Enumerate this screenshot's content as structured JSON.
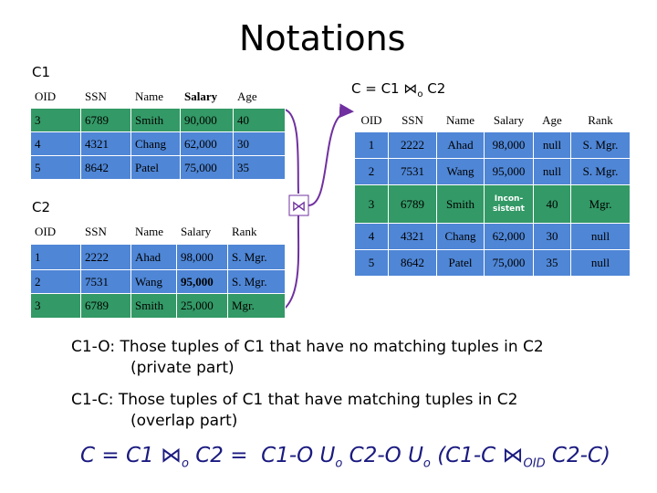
{
  "title": "Notations",
  "c1": {
    "label": "C1",
    "header": [
      "OID",
      "SSN",
      "Name",
      "Salary",
      "Age"
    ],
    "rows": [
      {
        "color": "#339966",
        "cells": [
          "3",
          "6789",
          "Smith",
          "90,000",
          "40"
        ]
      },
      {
        "color": "#4f86d6",
        "cells": [
          "4",
          "4321",
          "Chang",
          "62,000",
          "30"
        ]
      },
      {
        "color": "#4f86d6",
        "cells": [
          "5",
          "8642",
          "Patel",
          "75,000",
          "35"
        ]
      }
    ]
  },
  "c2": {
    "label": "C2",
    "header": [
      "OID",
      "SSN",
      "Name",
      "Salary",
      "Rank"
    ],
    "rows": [
      {
        "color": "#4f86d6",
        "cells": [
          "1",
          "2222",
          "Ahad",
          "98,000",
          "S. Mgr."
        ]
      },
      {
        "color": "#4f86d6",
        "cells": [
          "2",
          "7531",
          "Wang",
          "95,000",
          "S. Mgr."
        ]
      },
      {
        "color": "#339966",
        "cells": [
          "3",
          "6789",
          "Smith",
          "25,000",
          "Mgr."
        ]
      }
    ]
  },
  "join_symbol": "⋈",
  "result": {
    "label": [
      "C = C1 ⋈",
      "o",
      " C2"
    ],
    "header": [
      "OID",
      "SSN",
      "Name",
      "Salary",
      "Age",
      "Rank"
    ],
    "rows": [
      {
        "color": "#4f86d6",
        "cells": [
          "1",
          "2222",
          "Ahad",
          "98,000",
          "null",
          "S. Mgr."
        ]
      },
      {
        "color": "#4f86d6",
        "cells": [
          "2",
          "7531",
          "Wang",
          "95,000",
          "null",
          "S. Mgr."
        ]
      },
      {
        "color": "#339966",
        "cells": [
          "3",
          "6789",
          "Smith",
          "Incon-sistent",
          "40",
          "Mgr."
        ]
      },
      {
        "color": "#4f86d6",
        "cells": [
          "4",
          "4321",
          "Chang",
          "62,000",
          "30",
          "null"
        ]
      },
      {
        "color": "#4f86d6",
        "cells": [
          "5",
          "8642",
          "Patel",
          "75,000",
          "35",
          "null"
        ]
      }
    ]
  },
  "definitions": [
    {
      "text": "C1-O:  Those tuples of C1 that have no matching tuples in C2",
      "note": "(private part)"
    },
    {
      "text": "C1-C:  Those tuples of C1 that have matching tuples in C2",
      "note": "(overlap part)"
    }
  ],
  "formula": [
    "C = C1 ⋈",
    "o",
    " C2 =  C1-O U",
    "o",
    " C2-O U",
    "o",
    " (C1-C ⋈",
    "OID",
    " C2-C)"
  ]
}
